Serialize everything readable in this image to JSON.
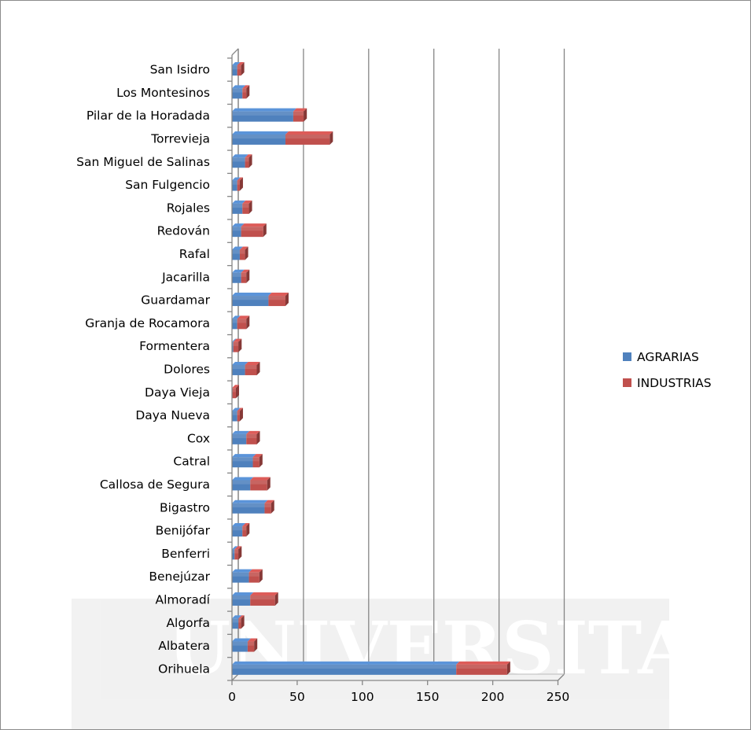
{
  "chart_data": {
    "type": "bar",
    "orientation": "horizontal",
    "stacked": true,
    "three_d": true,
    "categories": [
      "Orihuela",
      "Albatera",
      "Algorfa",
      "Almoradí",
      "Benejúzar",
      "Benferri",
      "Benijófar",
      "Bigastro",
      "Callosa de Segura",
      "Catral",
      "Cox",
      "Daya Nueva",
      "Daya Vieja",
      "Dolores",
      "Formentera",
      "Granja de Rocamora",
      "Guardamar",
      "Jacarilla",
      "Rafal",
      "Redován",
      "Rojales",
      "San Fulgencio",
      "San Miguel de Salinas",
      "Torrevieja",
      "Pilar de la Horadada",
      "Los Montesinos",
      "San Isidro"
    ],
    "series": [
      {
        "name": "AGRARIAS",
        "color": "#4f81bd",
        "values": [
          172,
          12,
          5,
          14,
          13,
          2,
          8,
          25,
          14,
          16,
          11,
          4,
          0,
          10,
          1,
          4,
          28,
          7,
          6,
          7,
          8,
          4,
          10,
          41,
          47,
          8,
          4
        ]
      },
      {
        "name": "INDUSTRIAS",
        "color": "#c0504d",
        "values": [
          39,
          5,
          2,
          19,
          8,
          3,
          3,
          5,
          13,
          5,
          8,
          2,
          3,
          9,
          4,
          7,
          13,
          4,
          4,
          17,
          5,
          2,
          3,
          34,
          8,
          3,
          3
        ]
      }
    ],
    "x_ticks": [
      "0",
      "50",
      "100",
      "150",
      "200",
      "250"
    ],
    "xlim": [
      0,
      250
    ],
    "grid": "vertical",
    "legend_position": "right"
  },
  "watermark": "UNIVERSITAS"
}
